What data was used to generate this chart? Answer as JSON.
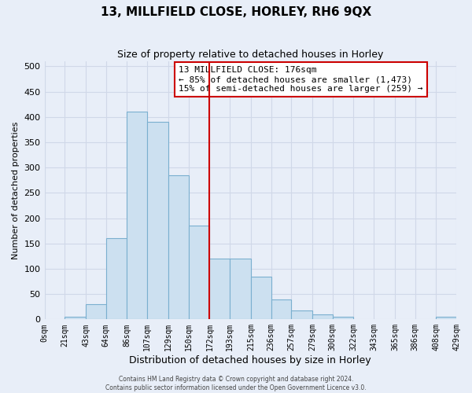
{
  "title": "13, MILLFIELD CLOSE, HORLEY, RH6 9QX",
  "subtitle": "Size of property relative to detached houses in Horley",
  "xlabel": "Distribution of detached houses by size in Horley",
  "ylabel": "Number of detached properties",
  "bin_edges": [
    0,
    21,
    43,
    64,
    86,
    107,
    129,
    150,
    172,
    193,
    215,
    236,
    257,
    279,
    300,
    322,
    343,
    365,
    386,
    408,
    429
  ],
  "bin_counts": [
    0,
    5,
    30,
    160,
    410,
    390,
    285,
    185,
    120,
    120,
    85,
    40,
    18,
    10,
    5,
    0,
    0,
    0,
    0,
    5
  ],
  "bar_color": "#cce0f0",
  "bar_edgecolor": "#7aafcf",
  "reference_line_x": 172,
  "reference_line_color": "#cc0000",
  "ylim": [
    0,
    510
  ],
  "yticks": [
    0,
    50,
    100,
    150,
    200,
    250,
    300,
    350,
    400,
    450,
    500
  ],
  "tick_labels": [
    "0sqm",
    "21sqm",
    "43sqm",
    "64sqm",
    "86sqm",
    "107sqm",
    "129sqm",
    "150sqm",
    "172sqm",
    "193sqm",
    "215sqm",
    "236sqm",
    "257sqm",
    "279sqm",
    "300sqm",
    "322sqm",
    "343sqm",
    "365sqm",
    "386sqm",
    "408sqm",
    "429sqm"
  ],
  "annotation_title": "13 MILLFIELD CLOSE: 176sqm",
  "annotation_line1": "← 85% of detached houses are smaller (1,473)",
  "annotation_line2": "15% of semi-detached houses are larger (259) →",
  "footer1": "Contains HM Land Registry data © Crown copyright and database right 2024.",
  "footer2": "Contains public sector information licensed under the Open Government Licence v3.0.",
  "background_color": "#e8eef8",
  "grid_color": "#d0d8e8",
  "title_fontsize": 11,
  "subtitle_fontsize": 9
}
